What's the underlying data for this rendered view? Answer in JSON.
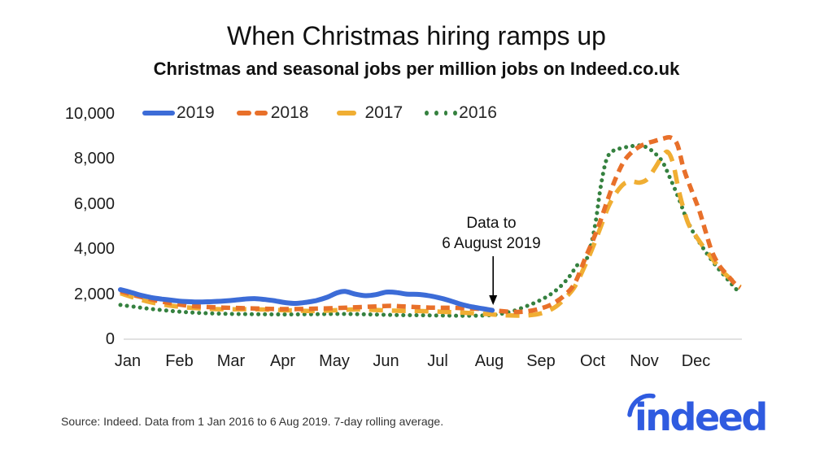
{
  "header": {
    "title": "When Christmas hiring ramps up",
    "subtitle": "Christmas and seasonal jobs per million jobs on Indeed.co.uk"
  },
  "annotation": {
    "line1": "Data to",
    "line2": "6 August 2019"
  },
  "footer": {
    "source": "Source: Indeed. Data from 1 Jan 2016 to 6 Aug 2019. 7-day rolling average.",
    "logo_text": "indeed",
    "logo_color": "#2f5be0"
  },
  "colors": {
    "grid_zero_line": "#d9d9d9",
    "axis_text": "#1c1c1c",
    "annotation_arrow": "#000000"
  },
  "chart_data": {
    "type": "line",
    "title": "When Christmas hiring ramps up",
    "subtitle": "Christmas and seasonal jobs per million jobs on Indeed.co.uk",
    "xlabel": "",
    "ylabel": "",
    "categories": [
      "Jan",
      "Feb",
      "Mar",
      "Apr",
      "May",
      "Jun",
      "Jul",
      "Aug",
      "Sep",
      "Oct",
      "Nov",
      "Dec"
    ],
    "y_ticks": [
      {
        "label": "10,000",
        "value": 10000
      },
      {
        "label": "8,000",
        "value": 8000
      },
      {
        "label": "6,000",
        "value": 6000
      },
      {
        "label": "4,000",
        "value": 4000
      },
      {
        "label": "2,000",
        "value": 2000
      },
      {
        "label": "0",
        "value": 0
      }
    ],
    "ylim": [
      0,
      10000
    ],
    "grid": "zero-line-only",
    "legend_position": "top-left",
    "x_unit_note": "x values are months elapsed since 1 Jan (0 = 1 Jan, 12 = 31 Dec)",
    "annotation": {
      "text": "Data to 6 August 2019",
      "points_to_month": 7.2
    },
    "series": [
      {
        "name": "2019",
        "color": "#3c6cd7",
        "style": "solid",
        "points": [
          [
            0,
            2200
          ],
          [
            0.2,
            2080
          ],
          [
            0.4,
            1950
          ],
          [
            0.6,
            1850
          ],
          [
            0.8,
            1780
          ],
          [
            1.0,
            1730
          ],
          [
            1.2,
            1680
          ],
          [
            1.5,
            1650
          ],
          [
            1.8,
            1670
          ],
          [
            2.1,
            1710
          ],
          [
            2.4,
            1780
          ],
          [
            2.6,
            1800
          ],
          [
            2.8,
            1760
          ],
          [
            3.0,
            1700
          ],
          [
            3.2,
            1620
          ],
          [
            3.4,
            1590
          ],
          [
            3.6,
            1640
          ],
          [
            3.8,
            1720
          ],
          [
            4.0,
            1860
          ],
          [
            4.2,
            2060
          ],
          [
            4.35,
            2120
          ],
          [
            4.55,
            2000
          ],
          [
            4.75,
            1930
          ],
          [
            4.95,
            1980
          ],
          [
            5.15,
            2090
          ],
          [
            5.35,
            2070
          ],
          [
            5.55,
            2000
          ],
          [
            5.75,
            1990
          ],
          [
            5.95,
            1940
          ],
          [
            6.15,
            1850
          ],
          [
            6.35,
            1730
          ],
          [
            6.55,
            1580
          ],
          [
            6.75,
            1460
          ],
          [
            6.95,
            1380
          ],
          [
            7.1,
            1320
          ],
          [
            7.2,
            1280
          ]
        ]
      },
      {
        "name": "2018",
        "color": "#e8702a",
        "style": "dashed",
        "points": [
          [
            0,
            2130
          ],
          [
            0.25,
            1960
          ],
          [
            0.5,
            1820
          ],
          [
            0.75,
            1690
          ],
          [
            1.0,
            1590
          ],
          [
            1.3,
            1490
          ],
          [
            1.6,
            1440
          ],
          [
            2.0,
            1400
          ],
          [
            2.5,
            1370
          ],
          [
            3.0,
            1340
          ],
          [
            3.5,
            1340
          ],
          [
            4.0,
            1370
          ],
          [
            4.5,
            1410
          ],
          [
            5.0,
            1460
          ],
          [
            5.25,
            1480
          ],
          [
            5.5,
            1450
          ],
          [
            6.0,
            1400
          ],
          [
            6.5,
            1390
          ],
          [
            7.0,
            1340
          ],
          [
            7.3,
            1260
          ],
          [
            7.6,
            1210
          ],
          [
            7.85,
            1230
          ],
          [
            8.1,
            1340
          ],
          [
            8.35,
            1550
          ],
          [
            8.6,
            1950
          ],
          [
            8.8,
            2500
          ],
          [
            9.0,
            3600
          ],
          [
            9.15,
            4400
          ],
          [
            9.3,
            5300
          ],
          [
            9.45,
            6300
          ],
          [
            9.6,
            7200
          ],
          [
            9.75,
            7900
          ],
          [
            9.9,
            8300
          ],
          [
            10.05,
            8550
          ],
          [
            10.2,
            8700
          ],
          [
            10.35,
            8800
          ],
          [
            10.5,
            8900
          ],
          [
            10.65,
            8950
          ],
          [
            10.78,
            8650
          ],
          [
            10.9,
            7600
          ],
          [
            11.05,
            6650
          ],
          [
            11.2,
            5750
          ],
          [
            11.32,
            4850
          ],
          [
            11.45,
            3900
          ],
          [
            11.6,
            3250
          ],
          [
            11.75,
            2850
          ],
          [
            11.9,
            2450
          ],
          [
            12,
            2280
          ]
        ]
      },
      {
        "name": "2017",
        "color": "#f0ae33",
        "style": "long-dash",
        "points": [
          [
            0,
            2040
          ],
          [
            0.3,
            1820
          ],
          [
            0.6,
            1630
          ],
          [
            1.0,
            1480
          ],
          [
            1.4,
            1390
          ],
          [
            1.8,
            1340
          ],
          [
            2.2,
            1330
          ],
          [
            2.6,
            1330
          ],
          [
            3.0,
            1300
          ],
          [
            3.4,
            1270
          ],
          [
            3.8,
            1250
          ],
          [
            4.2,
            1290
          ],
          [
            4.6,
            1320
          ],
          [
            5.0,
            1290
          ],
          [
            5.4,
            1260
          ],
          [
            5.8,
            1250
          ],
          [
            6.2,
            1220
          ],
          [
            6.6,
            1180
          ],
          [
            7.0,
            1130
          ],
          [
            7.3,
            1080
          ],
          [
            7.6,
            1050
          ],
          [
            7.9,
            1060
          ],
          [
            8.15,
            1150
          ],
          [
            8.4,
            1400
          ],
          [
            8.6,
            1800
          ],
          [
            8.8,
            2350
          ],
          [
            9.0,
            3300
          ],
          [
            9.15,
            4100
          ],
          [
            9.3,
            5000
          ],
          [
            9.45,
            5900
          ],
          [
            9.6,
            6500
          ],
          [
            9.75,
            6900
          ],
          [
            9.9,
            7000
          ],
          [
            10.05,
            6950
          ],
          [
            10.2,
            7100
          ],
          [
            10.35,
            7600
          ],
          [
            10.5,
            8150
          ],
          [
            10.6,
            8300
          ],
          [
            10.7,
            7800
          ],
          [
            10.8,
            6700
          ],
          [
            10.9,
            5800
          ],
          [
            11.0,
            5100
          ],
          [
            11.15,
            4550
          ],
          [
            11.3,
            4050
          ],
          [
            11.45,
            3600
          ],
          [
            11.6,
            3150
          ],
          [
            11.75,
            2800
          ],
          [
            11.9,
            2500
          ],
          [
            12,
            2320
          ]
        ]
      },
      {
        "name": "2016",
        "color": "#35813f",
        "style": "dotted",
        "points": [
          [
            0,
            1520
          ],
          [
            0.3,
            1430
          ],
          [
            0.6,
            1340
          ],
          [
            1.0,
            1250
          ],
          [
            1.4,
            1180
          ],
          [
            1.8,
            1140
          ],
          [
            2.2,
            1120
          ],
          [
            2.6,
            1110
          ],
          [
            3.0,
            1100
          ],
          [
            3.4,
            1100
          ],
          [
            3.8,
            1110
          ],
          [
            4.2,
            1120
          ],
          [
            4.6,
            1110
          ],
          [
            5.0,
            1090
          ],
          [
            5.4,
            1070
          ],
          [
            5.8,
            1060
          ],
          [
            6.2,
            1050
          ],
          [
            6.6,
            1040
          ],
          [
            7.0,
            1050
          ],
          [
            7.3,
            1100
          ],
          [
            7.6,
            1250
          ],
          [
            7.9,
            1500
          ],
          [
            8.1,
            1700
          ],
          [
            8.3,
            1950
          ],
          [
            8.5,
            2300
          ],
          [
            8.7,
            2800
          ],
          [
            8.85,
            3300
          ],
          [
            9.0,
            3450
          ],
          [
            9.1,
            4100
          ],
          [
            9.2,
            5200
          ],
          [
            9.3,
            6800
          ],
          [
            9.4,
            7900
          ],
          [
            9.5,
            8300
          ],
          [
            9.65,
            8450
          ],
          [
            9.85,
            8550
          ],
          [
            10.05,
            8600
          ],
          [
            10.2,
            8500
          ],
          [
            10.35,
            8250
          ],
          [
            10.5,
            7850
          ],
          [
            10.65,
            7100
          ],
          [
            10.8,
            6300
          ],
          [
            10.95,
            5400
          ],
          [
            11.1,
            4700
          ],
          [
            11.25,
            4150
          ],
          [
            11.4,
            3650
          ],
          [
            11.55,
            3200
          ],
          [
            11.7,
            2800
          ],
          [
            11.85,
            2400
          ],
          [
            12,
            2020
          ]
        ]
      }
    ]
  }
}
